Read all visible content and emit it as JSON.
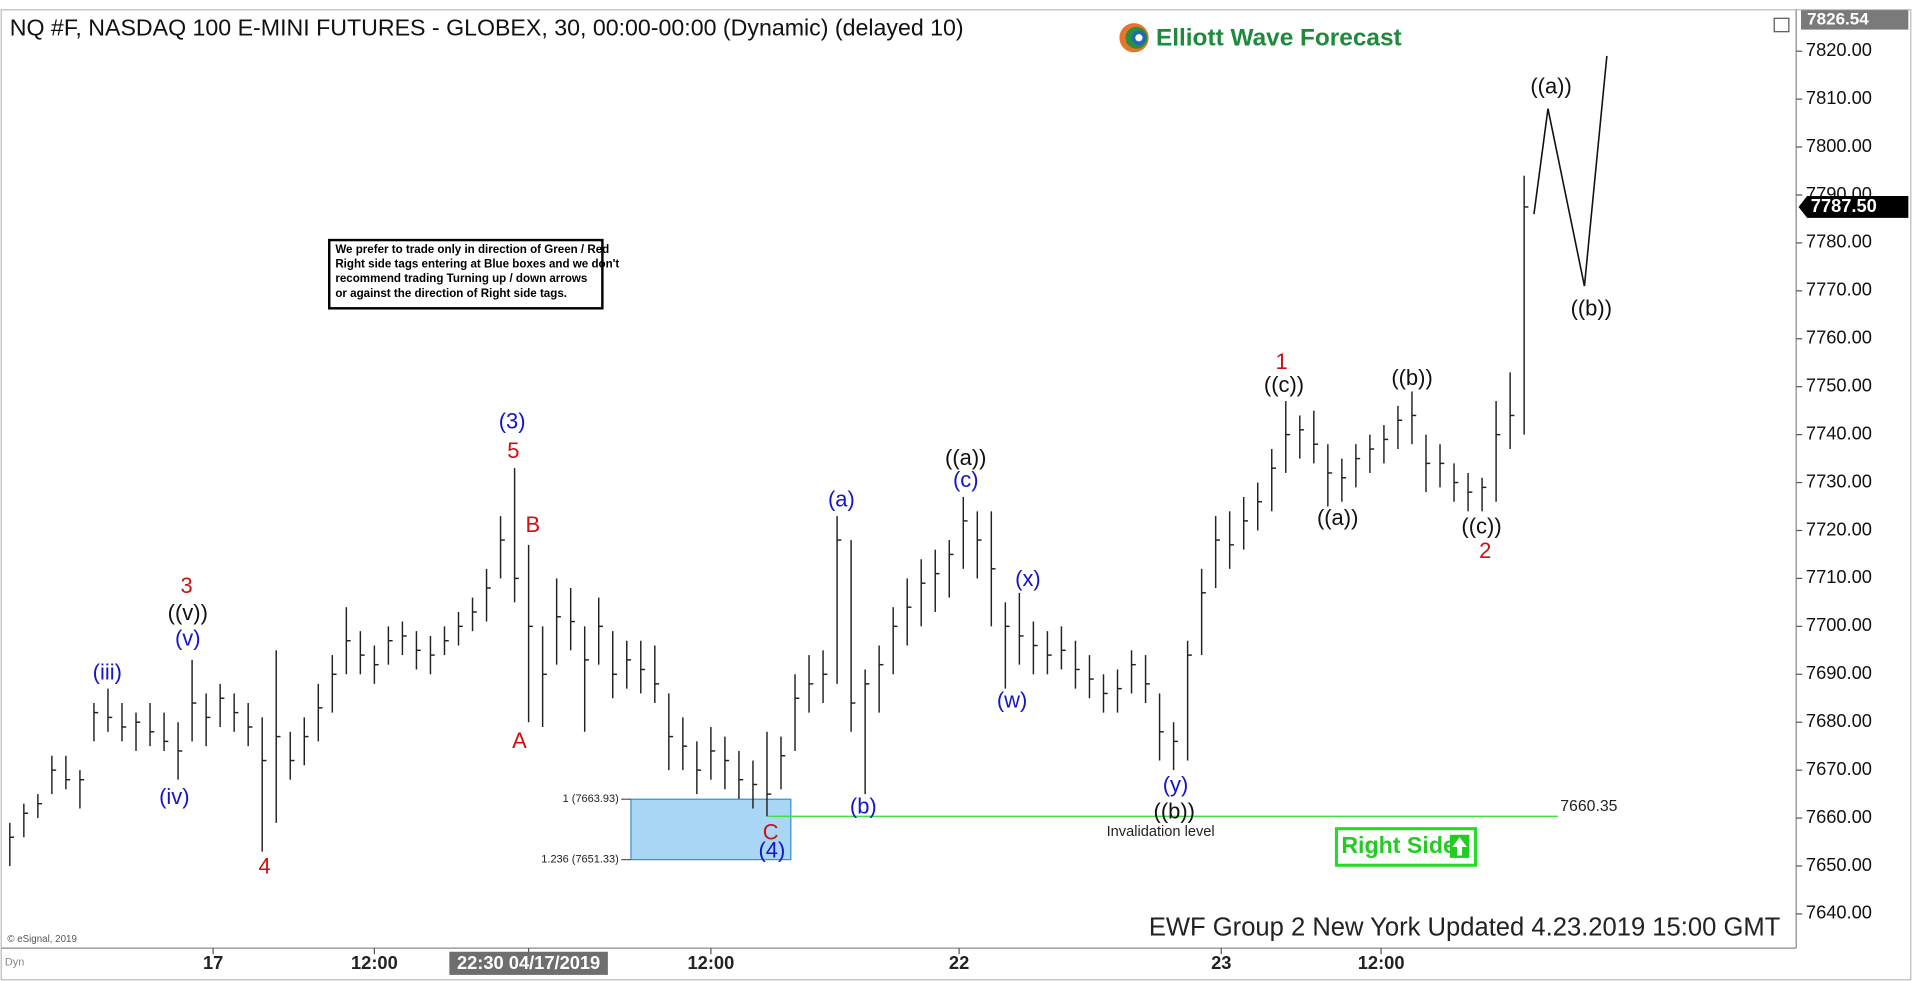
{
  "chart_data": {
    "type": "ohlc",
    "title": "NQ #F, NASDAQ 100 E-MINI FUTURES - GLOBEX, 30, 00:00-00:00 (Dynamic) (delayed 10)",
    "logo": "Elliott Wave Forecast",
    "note": [
      "We prefer to trade only in direction of Green / Red",
      "Right side tags entering at Blue boxes and we don't",
      "recommend trading Turning up / down arrows",
      "or against the direction of Right side tags."
    ],
    "footer": "EWF Group 2 New York Updated 4.23.2019 15:00 GMT",
    "copyright": "© eSignal, 2019",
    "corner_label": "Dyn",
    "right_side": "Right Side",
    "color": "#222222",
    "xlim": [
      -0.7,
      127.4
    ],
    "ylim": [
      7632.87,
      7830.68
    ],
    "xticks": [
      {
        "value": 14.5,
        "label": "17"
      },
      {
        "value": 26,
        "label": "12:00"
      },
      {
        "value": 37,
        "label": "22:30 04/17/2019"
      },
      {
        "value": 50,
        "label": "12:00"
      },
      {
        "value": 67.7,
        "label": "22"
      },
      {
        "value": 86.4,
        "label": "23"
      },
      {
        "value": 97.8,
        "label": "12:00"
      }
    ],
    "yticks": [
      {
        "value": 7640,
        "label": "7640.00"
      },
      {
        "value": 7650,
        "label": "7650.00"
      },
      {
        "value": 7660,
        "label": "7660.00"
      },
      {
        "value": 7670,
        "label": "7670.00"
      },
      {
        "value": 7680,
        "label": "7680.00"
      },
      {
        "value": 7690,
        "label": "7690.00"
      },
      {
        "value": 7700,
        "label": "7700.00"
      },
      {
        "value": 7710,
        "label": "7710.00"
      },
      {
        "value": 7720,
        "label": "7720.00"
      },
      {
        "value": 7730,
        "label": "7730.00"
      },
      {
        "value": 7740,
        "label": "7740.00"
      },
      {
        "value": 7750,
        "label": "7750.00"
      },
      {
        "value": 7760,
        "label": "7760.00"
      },
      {
        "value": 7770,
        "label": "7770.00"
      },
      {
        "value": 7780,
        "label": "7780.00"
      },
      {
        "value": 7790,
        "label": "7790.00"
      },
      {
        "value": 7800,
        "label": "7800.00"
      },
      {
        "value": 7810,
        "label": "7810.00"
      },
      {
        "value": 7820,
        "label": "7820.00"
      }
    ],
    "high_marker": 7826.54,
    "last_price": {
      "value": 7787.5,
      "label": "7787.50"
    },
    "bars": [
      [
        7659,
        7650,
        7656
      ],
      [
        7663,
        7656,
        7661
      ],
      [
        7665,
        7660,
        7663
      ],
      [
        7673,
        7665,
        7670
      ],
      [
        7673,
        7666,
        7668
      ],
      [
        7670,
        7662,
        7668
      ],
      [
        7684,
        7676,
        7682
      ],
      [
        7687,
        7678,
        7681
      ],
      [
        7684,
        7676,
        7679
      ],
      [
        7682,
        7674,
        7680
      ],
      [
        7684,
        7675,
        7678
      ],
      [
        7682,
        7674,
        7676
      ],
      [
        7680,
        7668,
        7674
      ],
      [
        7693,
        7676,
        7684
      ],
      [
        7686,
        7675,
        7681
      ],
      [
        7688,
        7679,
        7685
      ],
      [
        7686,
        7678,
        7682
      ],
      [
        7684,
        7675,
        7679
      ],
      [
        7681,
        7653,
        7672
      ],
      [
        7695,
        7659,
        7677
      ],
      [
        7678,
        7668,
        7672
      ],
      [
        7681,
        7671,
        7677
      ],
      [
        7688,
        7676,
        7683
      ],
      [
        7694,
        7682,
        7690
      ],
      [
        7704,
        7690,
        7697
      ],
      [
        7699,
        7690,
        7694
      ],
      [
        7696,
        7688,
        7692
      ],
      [
        7700,
        7692,
        7697
      ],
      [
        7701,
        7694,
        7698
      ],
      [
        7699,
        7691,
        7695
      ],
      [
        7698,
        7690,
        7694
      ],
      [
        7700,
        7694,
        7697
      ],
      [
        7703,
        7696,
        7700
      ],
      [
        7706,
        7699,
        7703
      ],
      [
        7712,
        7701,
        7708
      ],
      [
        7723,
        7710,
        7718
      ],
      [
        7733,
        7705,
        7710
      ],
      [
        7717,
        7680,
        7700
      ],
      [
        7700,
        7679,
        7690
      ],
      [
        7710,
        7692,
        7702
      ],
      [
        7708,
        7695,
        7701
      ],
      [
        7700,
        7678,
        7693
      ],
      [
        7706,
        7692,
        7700
      ],
      [
        7699,
        7685,
        7690
      ],
      [
        7697,
        7687,
        7693
      ],
      [
        7697,
        7686,
        7691
      ],
      [
        7696,
        7684,
        7688
      ],
      [
        7686,
        7670,
        7677
      ],
      [
        7681,
        7670,
        7675
      ],
      [
        7676,
        7665,
        7670
      ],
      [
        7679,
        7668,
        7674
      ],
      [
        7677,
        7666,
        7672
      ],
      [
        7674,
        7664,
        7668
      ],
      [
        7672,
        7662,
        7667
      ],
      [
        7678,
        7660.35,
        7665
      ],
      [
        7677,
        7666,
        7673
      ],
      [
        7690,
        7674,
        7685
      ],
      [
        7694,
        7682,
        7688
      ],
      [
        7695,
        7684,
        7690
      ],
      [
        7723,
        7688,
        7718
      ],
      [
        7718,
        7678,
        7684
      ],
      [
        7691,
        7665,
        7688
      ],
      [
        7696,
        7682,
        7692
      ],
      [
        7704,
        7690,
        7700
      ],
      [
        7710,
        7696,
        7704
      ],
      [
        7714,
        7700,
        7709
      ],
      [
        7716,
        7703,
        7711
      ],
      [
        7718,
        7706,
        7715
      ],
      [
        7727,
        7712,
        7722
      ],
      [
        7724,
        7710,
        7718
      ],
      [
        7724,
        7700,
        7712
      ],
      [
        7705,
        7687,
        7700
      ],
      [
        7707,
        7692,
        7698
      ],
      [
        7701,
        7690,
        7696
      ],
      [
        7699,
        7690,
        7694
      ],
      [
        7700,
        7691,
        7695
      ],
      [
        7697,
        7687,
        7691
      ],
      [
        7694,
        7685,
        7689
      ],
      [
        7690,
        7682,
        7686
      ],
      [
        7691,
        7682,
        7687
      ],
      [
        7695,
        7686,
        7692
      ],
      [
        7694,
        7684,
        7688
      ],
      [
        7686,
        7672,
        7678
      ],
      [
        7680,
        7670,
        7676
      ],
      [
        7697,
        7672,
        7694
      ],
      [
        7712,
        7694,
        7707
      ],
      [
        7723,
        7708,
        7718
      ],
      [
        7724,
        7712,
        7717
      ],
      [
        7727,
        7716,
        7722
      ],
      [
        7730,
        7720,
        7726
      ],
      [
        7737,
        7724,
        7733
      ],
      [
        7747,
        7732,
        7740
      ],
      [
        7744,
        7735,
        7741
      ],
      [
        7745,
        7734,
        7738
      ],
      [
        7738,
        7725,
        7732
      ],
      [
        7735,
        7726,
        7731
      ],
      [
        7738,
        7729,
        7735
      ],
      [
        7740,
        7732,
        7737
      ],
      [
        7742,
        7734,
        7739
      ],
      [
        7746,
        7737,
        7743
      ],
      [
        7749,
        7738,
        7744
      ],
      [
        7740,
        7728,
        7734
      ],
      [
        7738,
        7729,
        7734
      ],
      [
        7734,
        7726,
        7730
      ],
      [
        7732,
        7724,
        7728
      ],
      [
        7731,
        7724,
        7729
      ],
      [
        7747,
        7726,
        7740
      ],
      [
        7753,
        7737,
        7744
      ],
      [
        7794,
        7740,
        7787.5
      ]
    ],
    "projection": {
      "x": [
        108.7,
        109.7,
        112.3,
        113.9
      ],
      "values": [
        7786,
        7808,
        7771,
        7819
      ]
    },
    "fib_zone": {
      "x": [
        44.3,
        55.7
      ],
      "levels": [
        {
          "value": 7663.93,
          "label": "1 (7663.93)"
        },
        {
          "value": 7651.33,
          "label": "1.236 (7651.33)"
        }
      ]
    },
    "invalidation": {
      "value": 7660.35,
      "text": "Invalidation level",
      "x": [
        54.1,
        110.4
      ]
    },
    "annotations": [
      {
        "text": "(3)",
        "color": "#1414c8"
      },
      {
        "text": "5",
        "color": "#d01010"
      },
      {
        "text": "B",
        "color": "#d01010"
      },
      {
        "text": "A",
        "color": "#d01010"
      },
      {
        "text": "3",
        "color": "#d01010"
      },
      {
        "text": "((v))",
        "color": "#111111"
      },
      {
        "text": "(v)",
        "color": "#1414c8"
      },
      {
        "text": "(iii)",
        "color": "#1414c8"
      },
      {
        "text": "(iv)",
        "color": "#1414c8"
      },
      {
        "text": "4",
        "color": "#d01010"
      },
      {
        "text": "C",
        "color": "#d01010"
      },
      {
        "text": "(4)",
        "color": "#1414c8"
      },
      {
        "text": "(a)",
        "color": "#1414c8"
      },
      {
        "text": "(b)",
        "color": "#1414c8"
      },
      {
        "text": "((a))",
        "color": "#111111"
      },
      {
        "text": "(c)",
        "color": "#1414c8"
      },
      {
        "text": "(x)",
        "color": "#1414c8"
      },
      {
        "text": "(w)",
        "color": "#1414c8"
      },
      {
        "text": "(y)",
        "color": "#1414c8"
      },
      {
        "text": "((b))",
        "color": "#111111"
      },
      {
        "text": "1",
        "color": "#d01010"
      },
      {
        "text": "((c))",
        "color": "#111111"
      },
      {
        "text": "((a))",
        "color": "#111111"
      },
      {
        "text": "((b))",
        "color": "#111111"
      },
      {
        "text": "((c))",
        "color": "#111111"
      },
      {
        "text": "2",
        "color": "#d01010"
      },
      {
        "text": "((a))",
        "color": "#111111"
      },
      {
        "text": "((b))",
        "color": "#111111"
      }
    ]
  }
}
